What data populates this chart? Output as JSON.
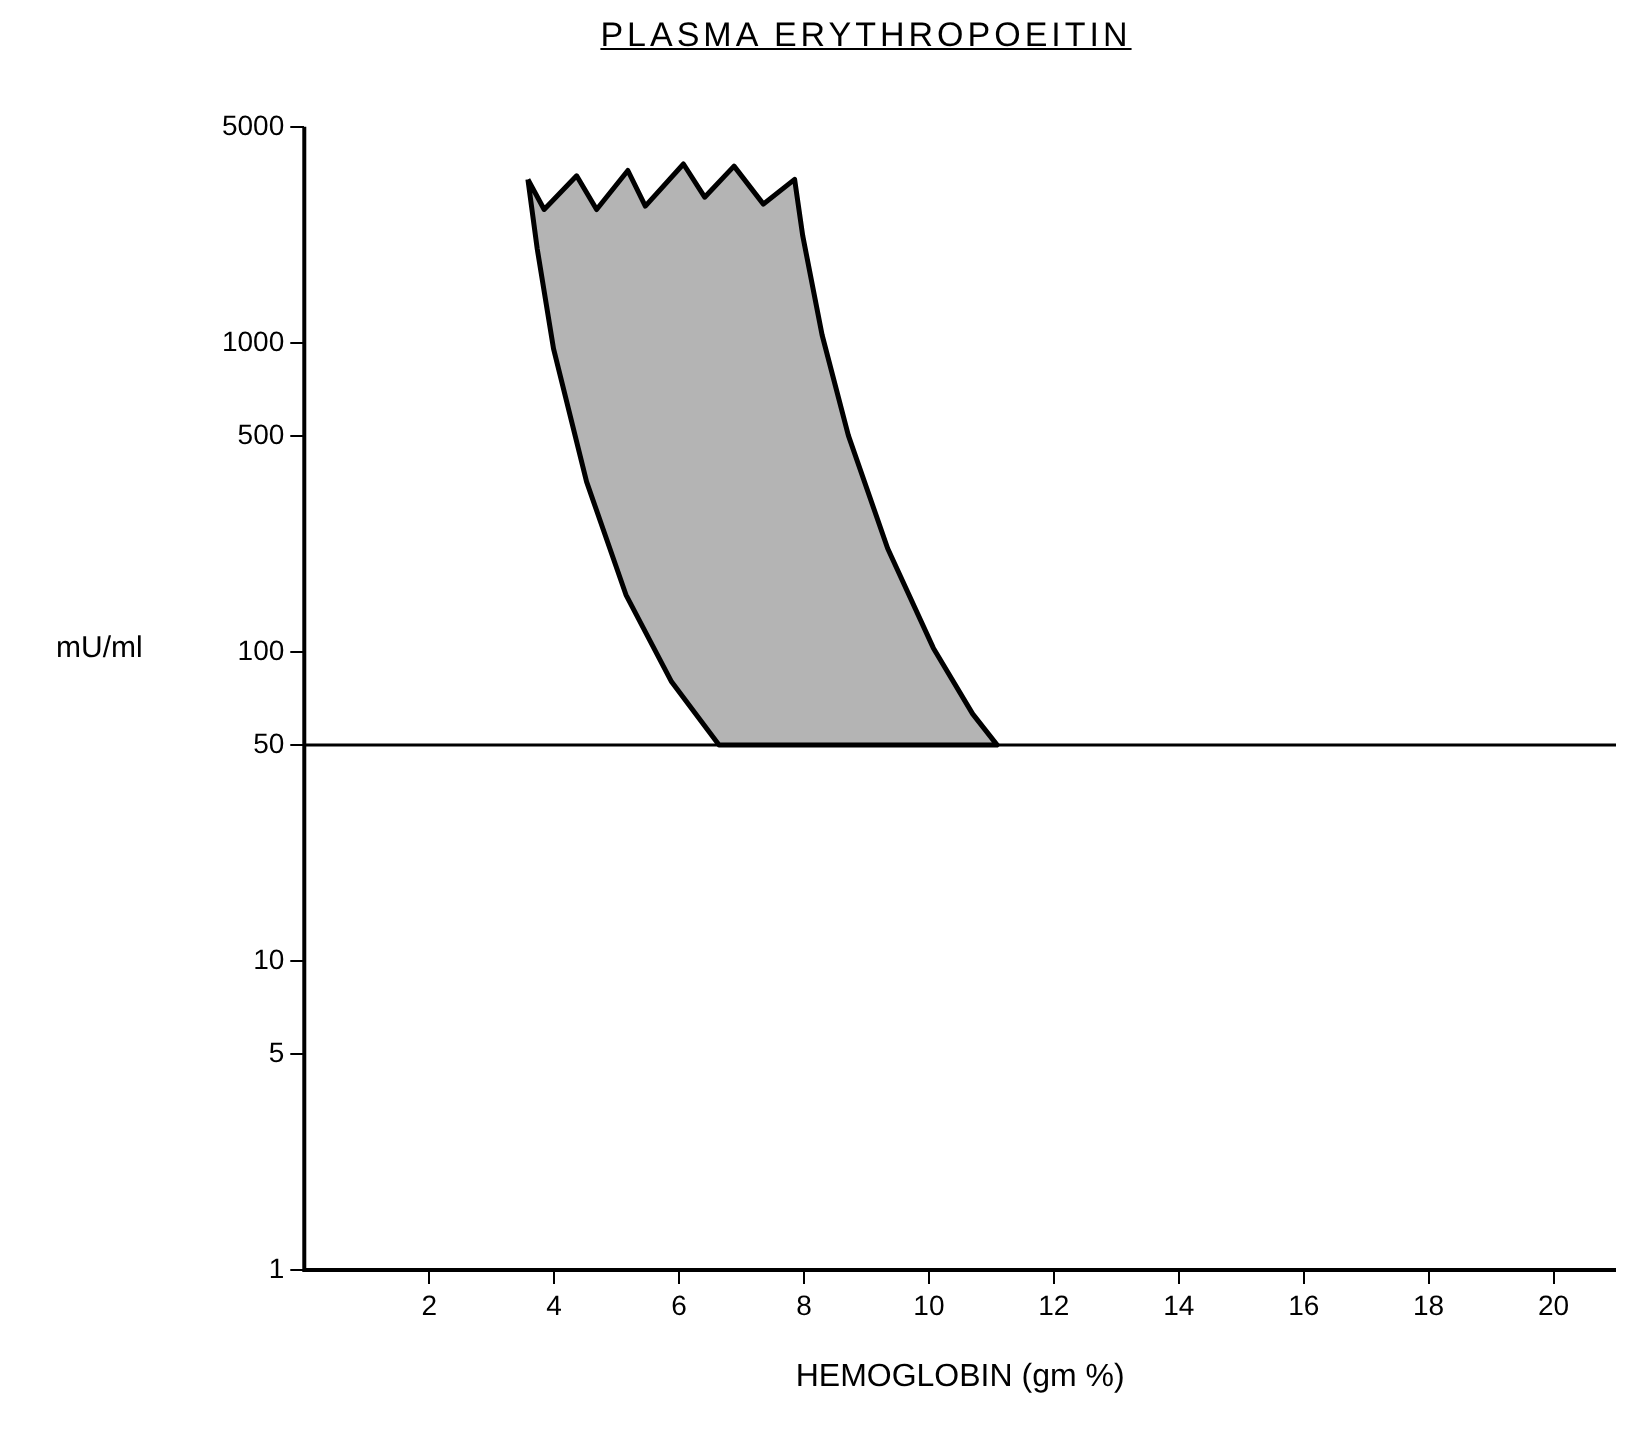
{
  "chart_data": {
    "type": "area",
    "title": "PLASMA ERYTHROPOEITIN",
    "xlabel": "HEMOGLOBIN (gm %)",
    "ylabel": "mU/ml",
    "log": "y",
    "xlim": [
      0,
      21
    ],
    "xticks": [
      2,
      4,
      6,
      8,
      10,
      12,
      14,
      16,
      18,
      20
    ],
    "ylim": [
      1,
      5000
    ],
    "yticks": [
      1,
      5,
      10,
      50,
      100,
      500,
      1000,
      5000
    ],
    "grid": false,
    "legend": false,
    "series": [
      {
        "color": "#b4b4b4",
        "x": [
          3.58,
          3.84,
          4.36,
          4.68,
          5.18,
          5.46,
          6.07,
          6.41,
          6.88,
          7.35,
          7.85,
          7.98,
          8.29,
          8.71,
          9.34,
          10.07,
          10.7,
          11.09,
          6.64,
          5.88,
          5.15,
          4.52,
          3.99,
          3.73,
          3.58
        ],
        "values": [
          3380,
          2700,
          3470,
          2700,
          3610,
          2770,
          3790,
          2960,
          3730,
          2810,
          3380,
          2220,
          1060,
          502,
          216,
          103,
          63,
          50,
          50,
          80,
          153,
          355,
          957,
          2010,
          3380
        ]
      }
    ],
    "ref_lines": [
      {
        "axis": "y",
        "value": 50,
        "color": "#000000"
      }
    ]
  }
}
